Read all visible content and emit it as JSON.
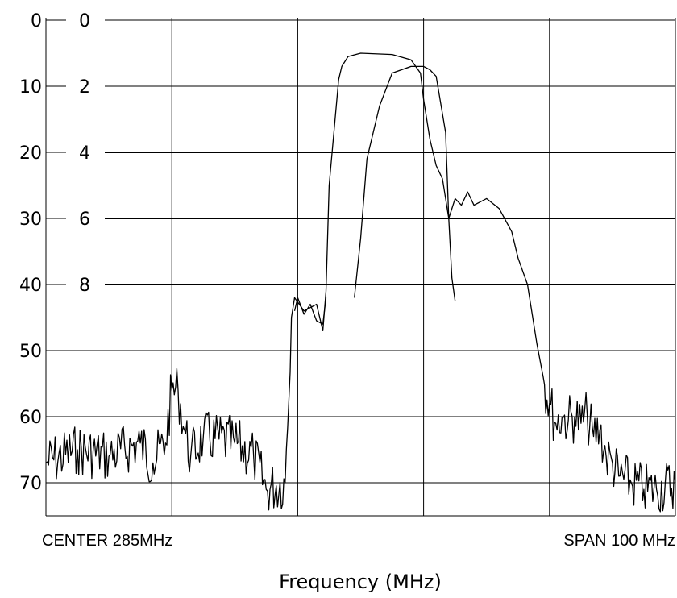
{
  "chart_data": {
    "type": "line",
    "title": "",
    "xlabel": "Frequency (MHz)",
    "ylabel": "",
    "x_unit": "MHz",
    "xlim": [
      235,
      335
    ],
    "ylim_outer": [
      0,
      75
    ],
    "ylim_inner": [
      0,
      10
    ],
    "y_inverted": true,
    "grid": true,
    "outer_y_ticks": [
      "0",
      "10",
      "20",
      "30",
      "40",
      "50",
      "60",
      "70"
    ],
    "inner_y_ticks": [
      "0",
      "2",
      "4",
      "6",
      "8"
    ],
    "center_label": "CENTER 285MHz",
    "span_label": "SPAN 100 MHz",
    "series": [
      {
        "axis": "outer",
        "x": [
          235,
          240,
          245,
          250,
          252,
          254,
          255,
          256,
          257,
          258,
          260,
          265,
          268,
          270,
          273,
          274,
          274.5,
          276,
          278,
          279,
          279.5,
          280,
          281.5,
          282,
          283,
          285,
          290,
          293,
          294.5,
          295,
          296,
          297,
          298,
          299,
          300,
          301,
          302,
          303,
          305,
          307,
          309,
          310,
          311.5,
          313,
          314,
          315,
          316,
          317,
          318,
          319,
          320,
          321,
          322,
          323,
          324,
          325,
          326,
          328,
          330,
          332,
          335
        ],
        "y": [
          67,
          65,
          66,
          64,
          67,
          64,
          56,
          56,
          62,
          66,
          63,
          64,
          66,
          71,
          70,
          45,
          42,
          44,
          43,
          47,
          41,
          25,
          9,
          7,
          5.5,
          5,
          5.2,
          6,
          8,
          12,
          18,
          22,
          24,
          30,
          27,
          28,
          26,
          28,
          27,
          28.5,
          32,
          36,
          40,
          49,
          54,
          58,
          61,
          60,
          60.5,
          60,
          61,
          60,
          63,
          62,
          66,
          67,
          69,
          70,
          71,
          71,
          70
        ]
      },
      {
        "axis": "outer",
        "x": [
          274.5,
          275,
          276,
          277,
          278,
          279,
          279.5
        ],
        "y": [
          44,
          42,
          44.5,
          43,
          45.5,
          46,
          42
        ]
      },
      {
        "axis": "inner",
        "x": [
          284,
          285,
          286,
          288,
          290,
          293,
          295,
          296,
          297,
          298.5,
          299,
          299.5,
          300
        ],
        "y": [
          8.4,
          6.6,
          4.2,
          2.6,
          1.6,
          1.4,
          1.4,
          1.5,
          1.7,
          3.4,
          6.0,
          7.8,
          8.5
        ]
      }
    ]
  }
}
